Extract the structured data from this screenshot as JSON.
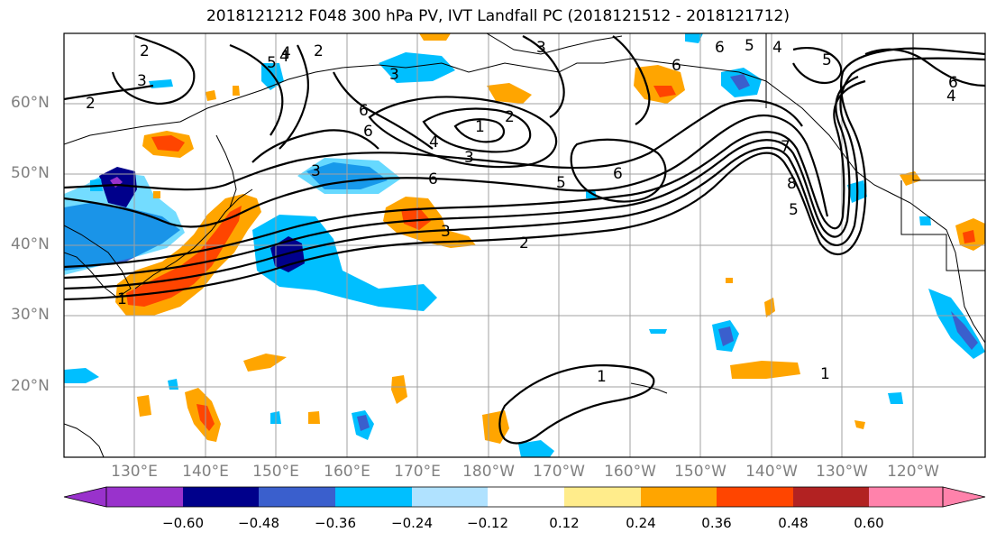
{
  "title": "2018121212 F048 300 hPa PV, IVT Landfall PC (2018121512 - 2018121712)",
  "lat_labels": [
    "60°N",
    "50°N",
    "40°N",
    "30°N",
    "20°N"
  ],
  "lon_labels": [
    "130°E",
    "140°E",
    "150°E",
    "160°E",
    "170°E",
    "180°W",
    "170°W",
    "160°W",
    "150°W",
    "140°W",
    "130°W",
    "120°W"
  ],
  "colorbar": {
    "ticks": [
      "−0.60",
      "−0.48",
      "−0.36",
      "−0.24",
      "−0.12",
      "0.12",
      "0.24",
      "0.36",
      "0.48",
      "0.60"
    ],
    "colors": [
      "#9932cc",
      "#00008b",
      "#3a5fcd",
      "#00bfff",
      "#b0e2ff",
      "#ffffff",
      "#ffec8b",
      "#ffa500",
      "#ff4500",
      "#b22222",
      "#ff82ab"
    ]
  },
  "contour_labels": [
    "2",
    "3",
    "2",
    "6",
    "5",
    "4",
    "3",
    "1",
    "2",
    "3",
    "4",
    "6",
    "6",
    "5",
    "4",
    "3",
    "1",
    "2",
    "3",
    "1",
    "6",
    "5",
    "6",
    "5",
    "4",
    "6",
    "4",
    "7",
    "8",
    "5",
    "6",
    "3",
    "2",
    "1"
  ]
}
